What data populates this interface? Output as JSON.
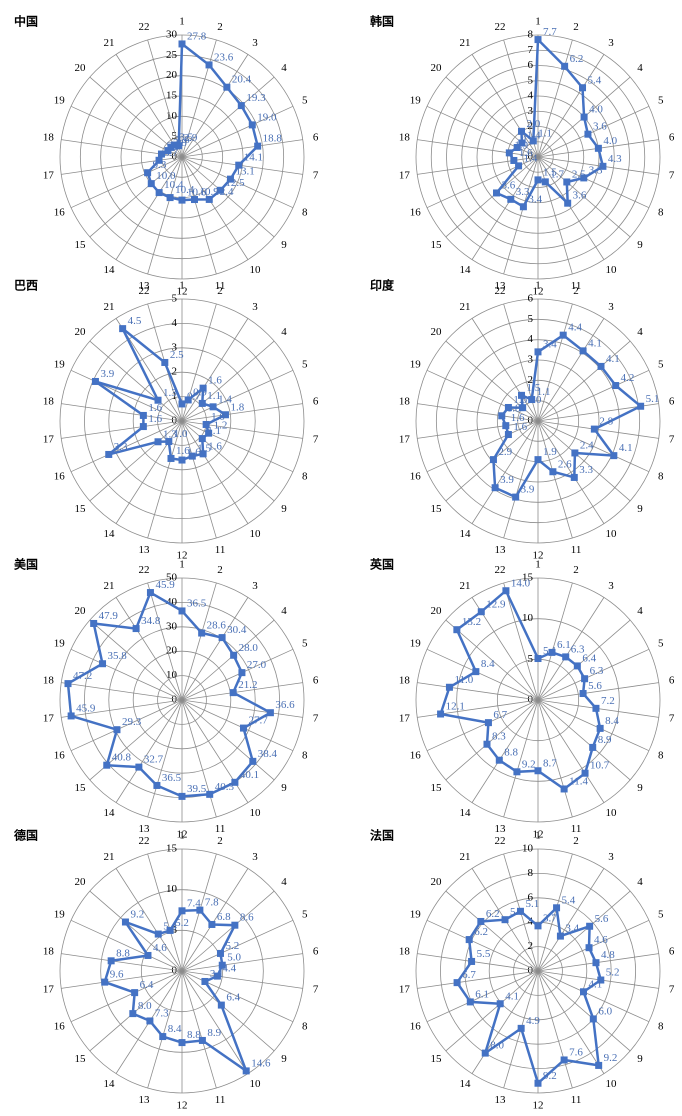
{
  "chart_data": [
    {
      "type": "radar",
      "title": "中国",
      "color": "#4472c4",
      "rlim": [
        0,
        30
      ],
      "rticks": [
        0,
        5,
        10,
        15,
        20,
        25,
        30
      ],
      "categories": [
        "1",
        "2",
        "3",
        "4",
        "5",
        "6",
        "7",
        "8",
        "9",
        "10",
        "11",
        "12",
        "13",
        "14",
        "15",
        "16",
        "17",
        "18",
        "19",
        "20",
        "21",
        "22"
      ],
      "values": [
        27.8,
        23.6,
        20.4,
        19.3,
        19.0,
        18.8,
        14.1,
        13.1,
        12.5,
        12.4,
        10.9,
        10.6,
        10.4,
        10.4,
        10.0,
        9.3,
        5.7,
        5.1,
        3.8,
        3.6,
        3.5,
        2.9
      ],
      "value_labels": [
        "27.8",
        "23.6",
        "20.4",
        "19.3",
        "19.0",
        "18.8",
        "14.1",
        "13.1",
        "12.5",
        "12.4",
        "10.9",
        "10.6",
        "10.4",
        "10.4",
        "10.0",
        "9.3",
        "5.7",
        "5.1",
        "3.8",
        "3.6",
        "3.5",
        "2.9"
      ]
    },
    {
      "type": "radar",
      "title": "韩国",
      "color": "#4472c4",
      "rlim": [
        0,
        8
      ],
      "rticks": [
        0,
        1,
        2,
        3,
        4,
        5,
        6,
        7,
        8
      ],
      "categories": [
        "1",
        "2",
        "3",
        "4",
        "5",
        "6",
        "7",
        "8",
        "9",
        "10",
        "11",
        "12",
        "13",
        "14",
        "15",
        "16",
        "17",
        "18",
        "19",
        "20",
        "21",
        "22"
      ],
      "values": [
        7.7,
        6.2,
        5.4,
        4.0,
        3.6,
        4.0,
        4.3,
        3.3,
        2.5,
        3.6,
        1.7,
        1.5,
        3.4,
        3.3,
        3.6,
        1.4,
        1.6,
        1.9,
        1.5,
        1.4,
        2.0,
        1.1
      ],
      "value_labels": [
        "7.7",
        "6.2",
        "5.4",
        "4.0",
        "3.6",
        "4.0",
        "4.3",
        "3.3",
        "2.5",
        "3.6",
        "1.7",
        "1.5",
        "3.4",
        "3.3",
        "3.6",
        "1.4",
        "1.6",
        "1.9",
        "1.5",
        "1.4",
        "2.0",
        "1.1"
      ]
    },
    {
      "type": "radar",
      "title": "巴西",
      "color": "#4472c4",
      "rlim": [
        0,
        5
      ],
      "rticks": [
        0,
        1,
        2,
        3,
        4,
        5
      ],
      "categories": [
        "1",
        "2",
        "3",
        "4",
        "5",
        "6",
        "7",
        "8",
        "9",
        "10",
        "11",
        "12",
        "13",
        "14",
        "15",
        "16",
        "17",
        "18",
        "19",
        "20",
        "21",
        "22"
      ],
      "values": [
        0.7,
        0.9,
        1.6,
        1.1,
        1.4,
        1.8,
        1.0,
        1.2,
        1.1,
        1.6,
        1.5,
        1.6,
        1.6,
        1.0,
        1.3,
        3.3,
        1.6,
        1.6,
        3.9,
        1.3,
        4.5,
        2.5
      ],
      "value_labels": [
        "0.7",
        "0.9",
        "1.6",
        "1.1",
        "1.4",
        "1.8",
        "1.0",
        "1.2",
        "1.1",
        "1.6",
        "1.5",
        "1.6",
        "1.6",
        "1.0",
        "1.3",
        "3.3",
        "1.6",
        "1.6",
        "3.9",
        "1.3",
        "4.5",
        "2.5"
      ]
    },
    {
      "type": "radar",
      "title": "印度",
      "color": "#4472c4",
      "rlim": [
        0,
        6
      ],
      "rticks": [
        0,
        1,
        2,
        3,
        4,
        5,
        6
      ],
      "categories": [
        "1",
        "2",
        "3",
        "4",
        "5",
        "6",
        "7",
        "8",
        "9",
        "10",
        "11",
        "12",
        "13",
        "14",
        "15",
        "16",
        "17",
        "18",
        "19",
        "20",
        "21",
        "22"
      ],
      "values": [
        3.4,
        4.4,
        4.1,
        4.1,
        4.2,
        5.1,
        2.8,
        4.1,
        2.4,
        3.3,
        2.6,
        1.9,
        3.9,
        3.9,
        2.9,
        1.6,
        1.6,
        1.8,
        1.6,
        1.0,
        1.5,
        1.1
      ],
      "value_labels": [
        "3.4",
        "4.4",
        "4.1",
        "4.1",
        "4.2",
        "5.1",
        "2.8",
        "4.1",
        "2.4",
        "3.3",
        "2.6",
        "1.9",
        "3.9",
        "3.9",
        "2.9",
        "1.6",
        "1.6",
        "1.8",
        "1.6",
        "1.0",
        "1.5",
        "1.1"
      ]
    },
    {
      "type": "radar",
      "title": "美国",
      "color": "#4472c4",
      "rlim": [
        0,
        50
      ],
      "rticks": [
        0,
        10,
        20,
        30,
        40,
        50
      ],
      "categories": [
        "1",
        "2",
        "3",
        "4",
        "5",
        "6",
        "7",
        "8",
        "9",
        "10",
        "11",
        "12",
        "13",
        "14",
        "15",
        "16",
        "17",
        "18",
        "19",
        "20",
        "21",
        "22"
      ],
      "values": [
        36.5,
        28.6,
        30.4,
        28.0,
        27.0,
        21.2,
        36.6,
        27.7,
        38.4,
        40.1,
        40.3,
        39.5,
        36.5,
        32.7,
        40.8,
        29.3,
        45.9,
        47.2,
        35.8,
        47.9,
        34.8,
        45.9
      ],
      "value_labels": [
        "36.5",
        "28.6",
        "30.4",
        "28.0",
        "27.0",
        "21.2",
        "36.6",
        "27.7",
        "38.4",
        "40.1",
        "40.3",
        "39.5",
        "36.5",
        "32.7",
        "40.8",
        "29.3",
        "45.9",
        "47.2",
        "35.8",
        "47.9",
        "34.8",
        "45.9"
      ]
    },
    {
      "type": "radar",
      "title": "英国",
      "color": "#4472c4",
      "rlim": [
        0,
        15
      ],
      "rticks": [
        0,
        5,
        10,
        15
      ],
      "categories": [
        "1",
        "2",
        "3",
        "4",
        "5",
        "6",
        "7",
        "8",
        "9",
        "10",
        "11",
        "12",
        "13",
        "14",
        "15",
        "16",
        "17",
        "18",
        "19",
        "20",
        "21",
        "22"
      ],
      "values": [
        5.1,
        6.1,
        6.3,
        6.4,
        6.3,
        5.6,
        7.2,
        8.4,
        8.9,
        10.7,
        11.4,
        8.7,
        9.2,
        8.8,
        8.3,
        6.7,
        12.1,
        11.0,
        8.4,
        13.2,
        12.9,
        14.0
      ],
      "value_labels": [
        "5.1",
        "6.1",
        "6.3",
        "6.4",
        "6.3",
        "5.6",
        "7.2",
        "8.4",
        "8.9",
        "10.7",
        "11.4",
        "8.7",
        "9.2",
        "8.8",
        "8.3",
        "6.7",
        "12.1",
        "11.0",
        "8.4",
        "13.2",
        "12.9",
        "14.0"
      ]
    },
    {
      "type": "radar",
      "title": "德国",
      "color": "#4472c4",
      "rlim": [
        0,
        15
      ],
      "rticks": [
        0,
        5,
        10,
        15
      ],
      "categories": [
        "1",
        "2",
        "3",
        "4",
        "5",
        "6",
        "7",
        "8",
        "9",
        "10",
        "11",
        "12",
        "13",
        "14",
        "15",
        "16",
        "17",
        "18",
        "19",
        "20",
        "21",
        "22"
      ],
      "values": [
        7.4,
        7.8,
        6.8,
        8.6,
        5.2,
        5.0,
        4.4,
        3.1,
        6.4,
        14.6,
        8.9,
        8.8,
        8.4,
        7.3,
        8.0,
        6.4,
        9.6,
        8.8,
        4.6,
        9.2,
        5.4,
        5.2
      ],
      "value_labels": [
        "7.4",
        "7.8",
        "6.8",
        "8.6",
        "5.2",
        "5.0",
        "4.4",
        "3.1",
        "6.4",
        "14.6",
        "8.9",
        "8.8",
        "8.4",
        "7.3",
        "8.0",
        "6.4",
        "9.6",
        "8.8",
        "4.6",
        "9.2",
        "5.4",
        "5.2"
      ]
    },
    {
      "type": "radar",
      "title": "法国",
      "color": "#4472c4",
      "rlim": [
        0,
        10
      ],
      "rticks": [
        0,
        2,
        4,
        6,
        8,
        10
      ],
      "categories": [
        "1",
        "2",
        "3",
        "4",
        "5",
        "6",
        "7",
        "8",
        "9",
        "10",
        "11",
        "12",
        "13",
        "14",
        "15",
        "16",
        "17",
        "18",
        "19",
        "20",
        "21",
        "22"
      ],
      "values": [
        3.7,
        5.4,
        3.4,
        5.6,
        4.6,
        4.8,
        5.2,
        4.1,
        6.0,
        9.2,
        7.6,
        9.2,
        4.9,
        8.0,
        4.1,
        6.1,
        6.7,
        5.5,
        6.2,
        6.2,
        5.0,
        5.1
      ],
      "value_labels": [
        "3.7",
        "5.4",
        "3.4",
        "5.6",
        "4.6",
        "4.8",
        "5.2",
        "4.1",
        "6.0",
        "9.2",
        "7.6",
        "9.2",
        "4.9",
        "8.0",
        "4.1",
        "6.1",
        "6.7",
        "5.5",
        "6.2",
        "6.2",
        "5.0",
        "5.1"
      ]
    }
  ]
}
